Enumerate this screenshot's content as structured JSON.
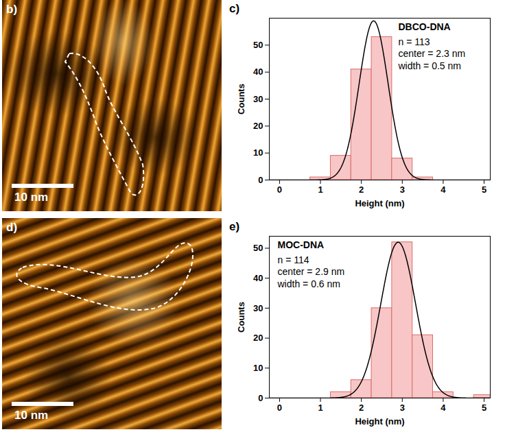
{
  "chart_data": [
    {
      "type": "histogram",
      "panel": "c)",
      "title": "DBCO-DNA",
      "annotations": [
        "n = 113",
        "center = 2.3 nm",
        "width = 0.5 nm"
      ],
      "x_label": "Height (nm)",
      "y_label": "Counts",
      "bins": [
        0.75,
        1.25,
        1.75,
        2.25,
        2.75,
        3.25,
        3.75
      ],
      "values": [
        1,
        9,
        41,
        53,
        8,
        1
      ],
      "color": "#f8c6c6",
      "fit": {
        "type": "gaussian",
        "amplitude": 59,
        "center": 2.3,
        "width": 0.5
      },
      "xlim": [
        -0.25,
        5.15
      ],
      "xticks": [
        0,
        1,
        2,
        3,
        4,
        5
      ],
      "ylim": [
        0,
        60
      ],
      "yticks": [
        0,
        10,
        20,
        30,
        40,
        50
      ]
    },
    {
      "type": "histogram",
      "panel": "e)",
      "title": "MOC-DNA",
      "annotations": [
        "n = 114",
        "center = 2.9 nm",
        "width = 0.6 nm"
      ],
      "x_label": "Height (nm)",
      "y_label": "Counts",
      "bins": [
        1.25,
        1.75,
        2.25,
        2.75,
        3.25,
        3.75,
        4.25,
        4.75,
        5.25
      ],
      "values": [
        2,
        6,
        30,
        52,
        21,
        2,
        0,
        1
      ],
      "color": "#f8c6c6",
      "fit": {
        "type": "gaussian",
        "amplitude": 52,
        "center": 2.9,
        "width": 0.6
      },
      "xlim": [
        -0.25,
        5.15
      ],
      "xticks": [
        0,
        1,
        2,
        3,
        4,
        5
      ],
      "ylim": [
        0,
        54
      ],
      "yticks": [
        0,
        10,
        20,
        30,
        40,
        50
      ]
    }
  ],
  "images": [
    {
      "panel": "b)",
      "scale_bar": "10 nm"
    },
    {
      "panel": "d)",
      "scale_bar": "10 nm"
    }
  ]
}
